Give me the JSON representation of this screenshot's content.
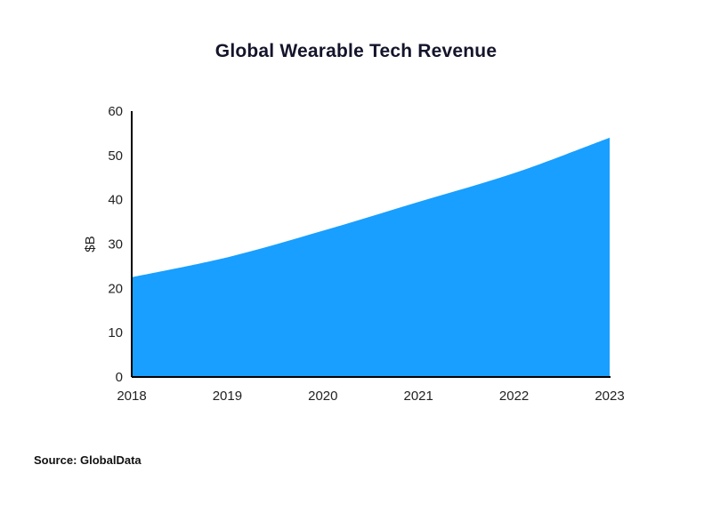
{
  "page": {
    "title": "Global Wearable Tech Revenue",
    "source": "Source: GlobalData"
  },
  "chart_data": {
    "type": "area",
    "title": "Global Wearable Tech Revenue",
    "categories": [
      2018,
      2019,
      2020,
      2021,
      2022,
      2023
    ],
    "values": [
      22.5,
      27,
      33,
      39.5,
      46,
      54
    ],
    "xlabel": "",
    "ylabel": "$B",
    "ylim": [
      0,
      60
    ],
    "yticks": [
      0,
      10,
      20,
      30,
      40,
      50,
      60
    ],
    "grid": false,
    "legend": "none",
    "source": "Source: GlobalData",
    "colors": {
      "area": "#189fff",
      "axis": "#000000",
      "tick_text": "#222222",
      "title_text": "#14142b"
    }
  }
}
